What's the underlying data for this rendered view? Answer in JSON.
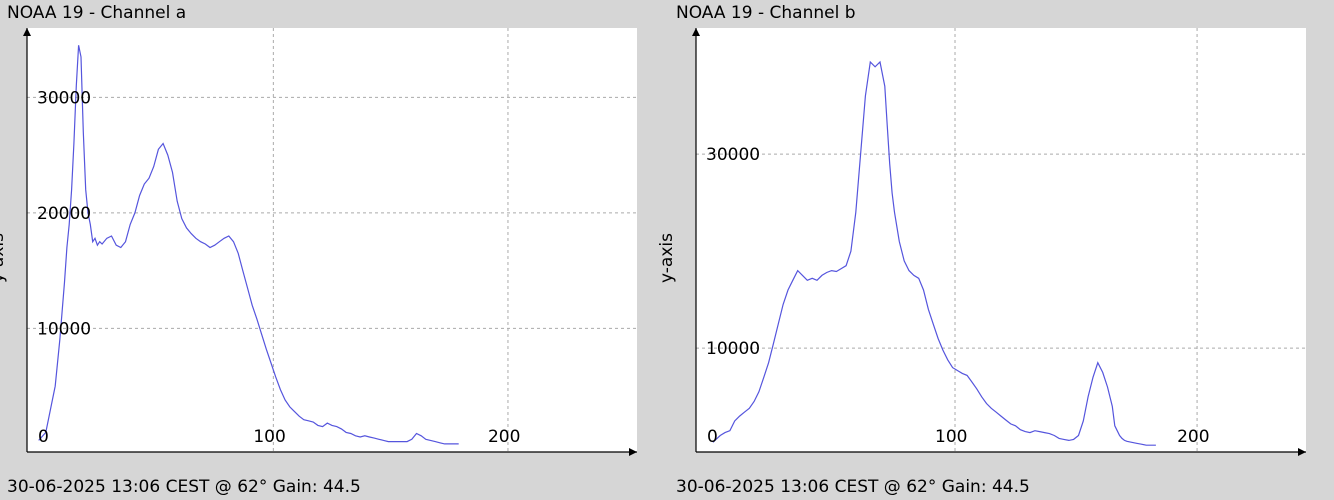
{
  "charts": [
    {
      "title": "NOAA 19 - Channel a",
      "footer": "30-06-2025 13:06 CEST @ 62° Gain: 44.5",
      "ylabel": "y-axis"
    },
    {
      "title": "NOAA 19 - Channel b",
      "footer": "30-06-2025 13:06 CEST @ 62° Gain: 44.5",
      "ylabel": "y-axis"
    }
  ],
  "colors": {
    "line": "#5555dd",
    "background": "#ffffff",
    "panel": "#d6d6d6",
    "grid": "#aaaaaa"
  },
  "chart_data": [
    {
      "type": "line",
      "title": "NOAA 19 - Channel a",
      "xlabel": "",
      "ylabel": "y-axis",
      "xlim": [
        -5,
        255
      ],
      "ylim": [
        -700,
        36000
      ],
      "x_ticks": [
        0,
        100,
        200
      ],
      "y_ticks": [
        10000,
        20000,
        30000
      ],
      "grid": true,
      "series": [
        {
          "x": [
            0,
            3,
            5,
            7,
            9,
            11,
            12,
            13,
            14,
            15,
            16,
            17,
            18,
            19,
            20,
            21,
            22,
            23,
            24,
            25,
            26,
            27,
            29,
            31,
            33,
            35,
            37,
            39,
            41,
            43,
            45,
            47,
            49,
            51,
            53,
            55,
            57,
            59,
            61,
            63,
            65,
            67,
            69,
            71,
            73,
            75,
            77,
            79,
            81,
            83,
            85,
            87,
            89,
            91,
            93,
            95,
            97,
            99,
            101,
            103,
            105,
            107,
            109,
            111,
            113,
            115,
            117,
            119,
            121,
            123,
            125,
            127,
            129,
            131,
            133,
            135,
            137,
            139,
            141,
            143,
            145,
            147,
            149,
            151,
            153,
            155,
            157,
            159,
            161,
            163,
            165,
            167,
            169,
            171,
            173,
            175,
            177,
            179
          ],
          "y": [
            300,
            1000,
            3000,
            5000,
            9000,
            14000,
            17000,
            19000,
            22000,
            26000,
            31000,
            34500,
            33500,
            27000,
            22000,
            20000,
            19000,
            17500,
            17800,
            17200,
            17500,
            17300,
            17800,
            18000,
            17200,
            17000,
            17500,
            19000,
            20000,
            21500,
            22500,
            23000,
            24000,
            25500,
            26000,
            25000,
            23500,
            21000,
            19500,
            18700,
            18200,
            17800,
            17500,
            17300,
            17000,
            17200,
            17500,
            17800,
            18000,
            17500,
            16500,
            15000,
            13500,
            12000,
            10800,
            9500,
            8200,
            7000,
            5800,
            4700,
            3800,
            3200,
            2800,
            2400,
            2100,
            2000,
            1900,
            1600,
            1500,
            1800,
            1600,
            1500,
            1300,
            1000,
            900,
            700,
            600,
            700,
            600,
            500,
            400,
            300,
            200,
            200,
            200,
            200,
            200,
            400,
            900,
            700,
            400,
            300,
            200,
            100,
            0,
            0,
            0,
            0
          ]
        }
      ]
    },
    {
      "type": "line",
      "title": "NOAA 19 - Channel b",
      "xlabel": "",
      "ylabel": "y-axis",
      "xlim": [
        -7,
        245
      ],
      "ylim": [
        -700,
        43000
      ],
      "x_ticks": [
        0,
        100,
        200
      ],
      "y_ticks": [
        10000,
        30000
      ],
      "grid": true,
      "series": [
        {
          "x": [
            0,
            3,
            5,
            7,
            9,
            11,
            13,
            15,
            17,
            19,
            21,
            23,
            25,
            27,
            29,
            31,
            33,
            35,
            37,
            39,
            41,
            43,
            45,
            47,
            49,
            51,
            53,
            55,
            57,
            59,
            61,
            63,
            65,
            67,
            69,
            71,
            72,
            73,
            74,
            75,
            77,
            79,
            81,
            83,
            85,
            87,
            89,
            91,
            93,
            95,
            97,
            99,
            101,
            103,
            105,
            107,
            109,
            111,
            113,
            115,
            117,
            119,
            121,
            123,
            125,
            127,
            129,
            131,
            133,
            135,
            137,
            139,
            141,
            143,
            145,
            147,
            149,
            151,
            153,
            155,
            157,
            159,
            161,
            163,
            165,
            166,
            167,
            168,
            169,
            170,
            171,
            173,
            175,
            177,
            179,
            181,
            183
          ],
          "y": [
            300,
            1000,
            1300,
            1500,
            2500,
            3000,
            3400,
            3800,
            4500,
            5500,
            7000,
            8500,
            10500,
            12500,
            14500,
            16000,
            17000,
            18000,
            17500,
            17000,
            17200,
            17000,
            17500,
            17800,
            18000,
            17900,
            18200,
            18500,
            20000,
            24000,
            30000,
            36000,
            39500,
            39000,
            39500,
            37000,
            33000,
            29000,
            26000,
            24000,
            21000,
            19000,
            18000,
            17500,
            17200,
            16000,
            14000,
            12500,
            11000,
            9800,
            8800,
            8000,
            7700,
            7400,
            7200,
            6500,
            5800,
            5000,
            4300,
            3800,
            3400,
            3000,
            2600,
            2200,
            2000,
            1600,
            1400,
            1300,
            1500,
            1400,
            1300,
            1200,
            1000,
            700,
            600,
            500,
            600,
            1000,
            2500,
            5000,
            7000,
            8500,
            7500,
            6000,
            4000,
            2000,
            1500,
            1000,
            700,
            500,
            400,
            300,
            200,
            100,
            0,
            0,
            0
          ]
        }
      ]
    }
  ]
}
